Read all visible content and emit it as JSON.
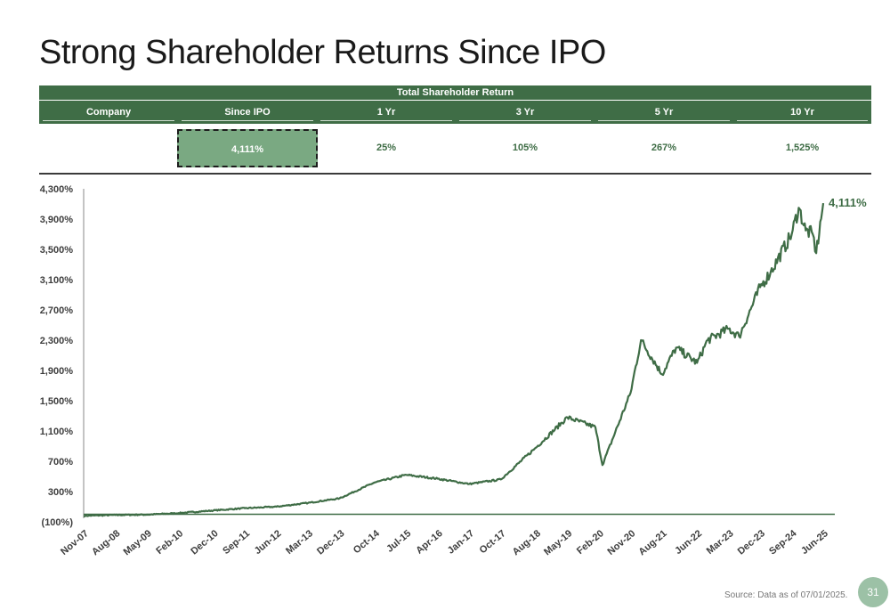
{
  "title": "Strong Shareholder Returns Since IPO",
  "table": {
    "group_header": "Total Shareholder Return",
    "columns": [
      "Company",
      "Since IPO",
      "1 Yr",
      "3 Yr",
      "5 Yr",
      "10 Yr"
    ],
    "values": [
      "",
      "4,111%",
      "25%",
      "105%",
      "267%",
      "1,525%"
    ],
    "highlighted_column": "Since IPO"
  },
  "chart_data": {
    "type": "line",
    "x_tick_labels": [
      "Nov-07",
      "Aug-08",
      "May-09",
      "Feb-10",
      "Dec-10",
      "Sep-11",
      "Jun-12",
      "Mar-13",
      "Dec-13",
      "Oct-14",
      "Jul-15",
      "Apr-16",
      "Jan-17",
      "Oct-17",
      "Aug-18",
      "May-19",
      "Feb-20",
      "Nov-20",
      "Aug-21",
      "Jun-22",
      "Mar-23",
      "Dec-23",
      "Sep-24",
      "Jun-25"
    ],
    "y_tick_labels": [
      "4,300%",
      "3,900%",
      "3,500%",
      "3,100%",
      "2,700%",
      "2,300%",
      "1,900%",
      "1,500%",
      "1,100%",
      "700%",
      "300%",
      "(100%)"
    ],
    "ylim": [
      -100,
      4300
    ],
    "baseline": 0,
    "series": [
      {
        "x": [
          "Nov-07",
          "Aug-08",
          "May-09",
          "Feb-10",
          "Dec-10",
          "Sep-11",
          "Jun-12",
          "Mar-13",
          "Dec-13",
          "Oct-14",
          "Jul-15",
          "Apr-16",
          "Jan-17",
          "Oct-17",
          "Aug-18",
          "May-19",
          "Jan-20",
          "Mar-20",
          "Nov-20",
          "Feb-21",
          "Aug-21",
          "Dec-21",
          "Jun-22",
          "Sep-22",
          "Mar-23",
          "Jun-23",
          "Dec-23",
          "Mar-24",
          "Sep-24",
          "Nov-24",
          "Jan-25",
          "Mar-25",
          "Apr-25",
          "Jun-25"
        ],
        "values": [
          -20,
          -10,
          -5,
          15,
          50,
          80,
          100,
          150,
          210,
          420,
          520,
          470,
          400,
          460,
          880,
          1280,
          1150,
          650,
          1600,
          2300,
          1850,
          2200,
          2000,
          2300,
          2450,
          2350,
          3000,
          3200,
          3700,
          4050,
          3750,
          3700,
          3450,
          4111
        ]
      }
    ],
    "end_label": "4,111%",
    "line_color": "#3f6d46",
    "grid": false
  },
  "footer": {
    "source": "Source: Data as of 07/01/2025.",
    "page_number": "31"
  }
}
